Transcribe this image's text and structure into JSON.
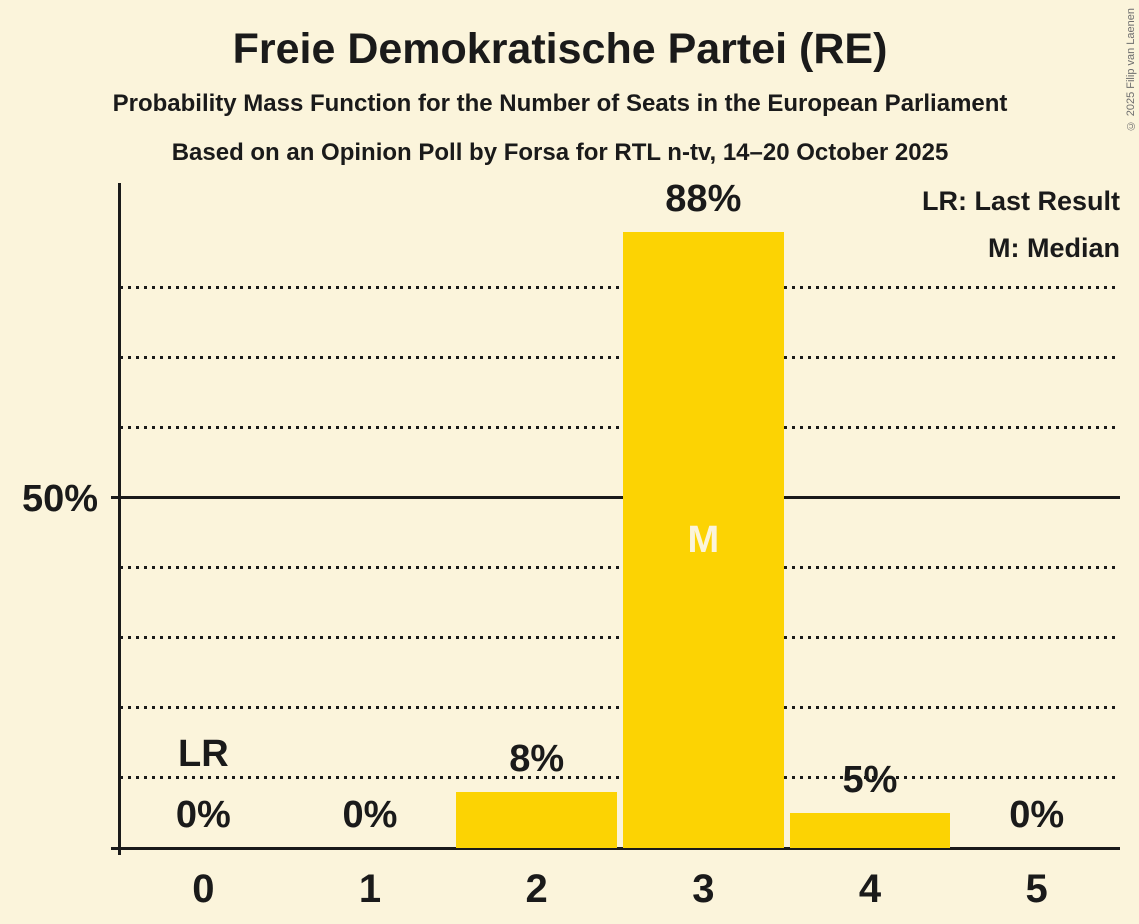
{
  "copyright": "© 2025 Filip van Laenen",
  "chart_data": {
    "type": "bar",
    "title": "Freie Demokratische Partei (RE)",
    "subtitle": "Probability Mass Function for the Number of Seats in the European Parliament",
    "source_line": "Based on an Opinion Poll by Forsa for RTL n-tv, 14–20 October 2025",
    "categories": [
      "0",
      "1",
      "2",
      "3",
      "4",
      "5"
    ],
    "values": [
      0,
      0,
      8,
      88,
      5,
      0
    ],
    "value_labels": [
      "0%",
      "0%",
      "8%",
      "88%",
      "5%",
      "0%"
    ],
    "xlabel": "",
    "ylabel": "",
    "ylim": [
      0,
      95
    ],
    "ytick": {
      "value": 50,
      "label": "50%"
    },
    "gridlines": {
      "dotted": [
        10,
        20,
        30,
        40,
        60,
        70,
        80
      ],
      "solid": [
        50
      ]
    },
    "grid": "horizontal",
    "legend_position": "top-right",
    "legend": [
      {
        "label": "LR: Last Result"
      },
      {
        "label": "M: Median"
      }
    ],
    "annotations": [
      {
        "type": "last_result",
        "category_index": 0,
        "label": "LR"
      },
      {
        "type": "median",
        "category_index": 3,
        "label": "M"
      }
    ],
    "colors": {
      "bar": "#FCD303",
      "background": "#FBF4DB",
      "text": "#1A1A1A",
      "median_label_text": "#FBF4DB",
      "copyright_text": "#6E6E6E"
    }
  }
}
